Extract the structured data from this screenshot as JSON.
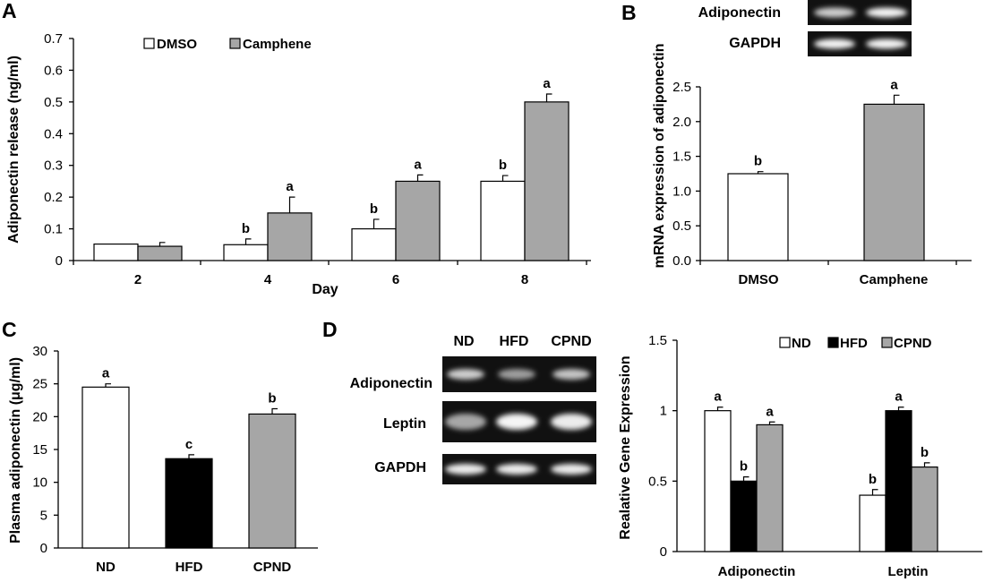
{
  "colors": {
    "white": "#ffffff",
    "black": "#000000",
    "gray": "#a6a6a6"
  },
  "chart_data": [
    {
      "id": "A",
      "type": "bar",
      "panel_label": "A",
      "categories": [
        "2",
        "4",
        "6",
        "8"
      ],
      "xlabel": "Day",
      "ylabel": "Adiponectin release (ng/ml)",
      "ylim": [
        0,
        0.7
      ],
      "yticks": [
        "0",
        "0.1",
        "0.2",
        "0.3",
        "0.4",
        "0.5",
        "0.6",
        "0.7"
      ],
      "legend_position": "top",
      "series": [
        {
          "name": "DMSO",
          "color": "#ffffff",
          "values": [
            0.052,
            0.05,
            0.1,
            0.25
          ],
          "errors": [
            0,
            0.018,
            0.03,
            0.018
          ],
          "letters": [
            "",
            "b",
            "b",
            "b"
          ]
        },
        {
          "name": "Camphene",
          "color": "#a6a6a6",
          "values": [
            0.045,
            0.15,
            0.25,
            0.5
          ],
          "errors": [
            0.012,
            0.05,
            0.02,
            0.025
          ],
          "letters": [
            "",
            "a",
            "a",
            "a"
          ]
        }
      ]
    },
    {
      "id": "B",
      "type": "bar",
      "panel_label": "B",
      "categories": [
        "DMSO",
        "Camphene"
      ],
      "ylabel": "mRNA expression of adiponectin",
      "ylim": [
        0,
        2.5
      ],
      "yticks": [
        "0.0",
        "0.5",
        "1.0",
        "1.5",
        "2.0",
        "2.5"
      ],
      "series": [
        {
          "values": [
            1.25,
            2.25
          ],
          "colors": [
            "#ffffff",
            "#a6a6a6"
          ],
          "errors": [
            0.03,
            0.13
          ],
          "letters": [
            "b",
            "a"
          ]
        }
      ]
    },
    {
      "id": "C",
      "type": "bar",
      "panel_label": "C",
      "categories": [
        "ND",
        "HFD",
        "CPND"
      ],
      "ylabel": "Plasma adiponectin (μg/ml)",
      "ylim": [
        0,
        30
      ],
      "yticks": [
        "0",
        "5",
        "10",
        "15",
        "20",
        "25",
        "30"
      ],
      "series": [
        {
          "values": [
            24.5,
            13.6,
            20.4
          ],
          "colors": [
            "#ffffff",
            "#000000",
            "#a6a6a6"
          ],
          "errors": [
            0.5,
            0.6,
            0.8
          ],
          "letters": [
            "a",
            "c",
            "b"
          ]
        }
      ]
    },
    {
      "id": "D",
      "type": "bar",
      "panel_label": "D",
      "categories": [
        "Adiponectin",
        "Leptin"
      ],
      "ylabel": "Realative Gene Expression",
      "ylim": [
        0,
        1.5
      ],
      "yticks": [
        "0",
        "0.5",
        "1",
        "1.5"
      ],
      "legend_position": "top-right",
      "series": [
        {
          "name": "ND",
          "color": "#ffffff",
          "values": [
            1.0,
            0.4
          ],
          "errors": [
            0.025,
            0.04
          ],
          "letters": [
            "a",
            "b"
          ]
        },
        {
          "name": "HFD",
          "color": "#000000",
          "values": [
            0.5,
            1.0
          ],
          "errors": [
            0.03,
            0.025
          ],
          "letters": [
            "b",
            "a"
          ]
        },
        {
          "name": "CPND",
          "color": "#a6a6a6",
          "values": [
            0.9,
            0.6
          ],
          "errors": [
            0.02,
            0.03
          ],
          "letters": [
            "a",
            "b"
          ]
        }
      ]
    }
  ],
  "gel_B": {
    "labels": [
      "Adiponectin",
      "GAPDH"
    ],
    "intensities": [
      [
        0.75,
        0.95
      ],
      [
        0.95,
        0.95
      ]
    ]
  },
  "gel_D": {
    "lanes": [
      "ND",
      "HFD",
      "CPND"
    ],
    "labels": [
      "Adiponectin",
      "Leptin",
      "GAPDH"
    ],
    "intensities": [
      [
        0.75,
        0.5,
        0.7
      ],
      [
        0.55,
        0.95,
        0.9
      ],
      [
        0.9,
        0.9,
        0.9
      ]
    ]
  }
}
